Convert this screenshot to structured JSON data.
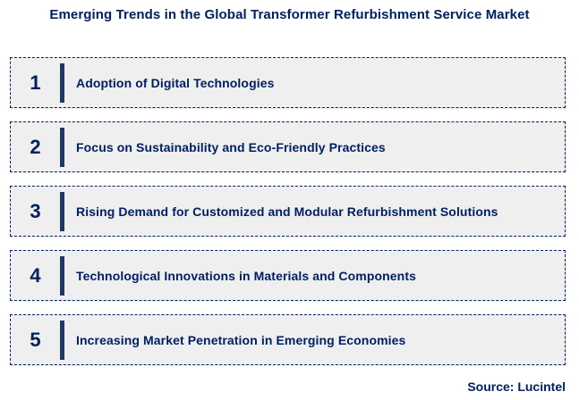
{
  "title": "Emerging Trends in the Global Transformer Refurbishment Service Market",
  "items": [
    {
      "number": "1",
      "label": "Adoption of Digital Technologies"
    },
    {
      "number": "2",
      "label": "Focus on Sustainability and Eco-Friendly Practices"
    },
    {
      "number": "3",
      "label": "Rising Demand for Customized and Modular Refurbishment Solutions"
    },
    {
      "number": "4",
      "label": "Technological Innovations in Materials and Components"
    },
    {
      "number": "5",
      "label": "Increasing Market Penetration in Emerging Economies"
    }
  ],
  "source": "Source: Lucintel",
  "colors": {
    "text_navy": "#002060",
    "bar_navy": "#1F3864",
    "box_background": "#EFEFEF",
    "page_background": "#FFFFFF"
  }
}
